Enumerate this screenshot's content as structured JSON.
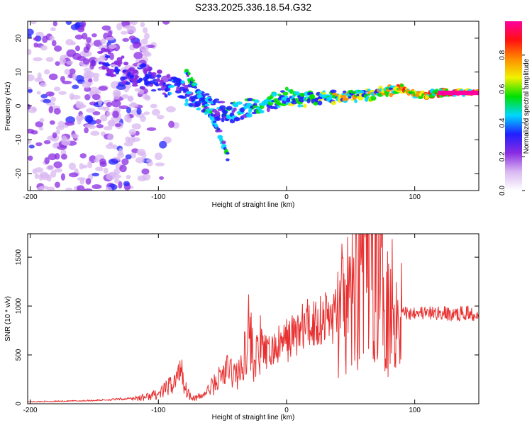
{
  "title": "S233.2025.336.18.54.G32",
  "colors": {
    "trace": "#e83030",
    "frame": "#000000"
  },
  "colormap": [
    "#ffffff",
    "#d9b8f2",
    "#8a2be2",
    "#2020ff",
    "#00d8ff",
    "#00e000",
    "#f2f200",
    "#ff8c00",
    "#ff1010",
    "#ff00a0"
  ],
  "chart_data": [
    {
      "type": "heatmap",
      "title": "S233.2025.336.18.54.G32",
      "xlabel": "Height of straight line (km)",
      "ylabel": "Frequency (Hz)",
      "xlim": [
        -202,
        150
      ],
      "ylim": [
        -25,
        25
      ],
      "x_ticks": [
        -200,
        -100,
        0,
        100
      ],
      "y_ticks": [
        -20,
        -10,
        0,
        10,
        20
      ],
      "colorbar": {
        "label": "Normalized spectral amplitude",
        "range": [
          0.0,
          1.0
        ],
        "ticks": [
          "0.0",
          "0.2",
          "0.4",
          "0.6",
          "0.8"
        ]
      },
      "ridge": {
        "x": [
          -145,
          -130,
          -115,
          -100,
          -85,
          -75,
          -65,
          -55,
          -45,
          -35,
          -25,
          -15,
          -5,
          0,
          10,
          20,
          30,
          40,
          50,
          60,
          70,
          80,
          90,
          100,
          110,
          120,
          150
        ],
        "freq": [
          14,
          11,
          9,
          7,
          5,
          3,
          1,
          -1,
          -2,
          -1,
          0,
          1,
          2,
          3,
          1.5,
          2,
          2.5,
          2.5,
          3,
          3,
          3.5,
          4.5,
          5,
          3.5,
          3.5,
          4,
          4
        ]
      },
      "branch": {
        "x": [
          -78,
          -72,
          -66,
          -60,
          -55,
          -50,
          -46
        ],
        "freq": [
          10,
          6,
          2,
          -2,
          -6,
          -10,
          -15
        ]
      }
    },
    {
      "type": "line",
      "title": "",
      "xlabel": "Height of straight line (km)",
      "ylabel": "SNR (10 * v/v)",
      "xlim": [
        -202,
        150
      ],
      "ylim": [
        0,
        1740
      ],
      "x_ticks": [
        -200,
        -100,
        0,
        100
      ],
      "y_ticks": [
        0,
        500,
        1000,
        1500
      ],
      "series": [
        {
          "name": "SNR",
          "x": [
            -202,
            -180,
            -160,
            -140,
            -120,
            -110,
            -100,
            -95,
            -90,
            -85,
            -82,
            -80,
            -75,
            -70,
            -65,
            -60,
            -55,
            -50,
            -45,
            -40,
            -35,
            -30,
            -25,
            -20,
            -15,
            -10,
            -5,
            0,
            5,
            10,
            15,
            20,
            25,
            30,
            35,
            40,
            45,
            50,
            55,
            60,
            62,
            65,
            67,
            70,
            72,
            75,
            78,
            80,
            85,
            90,
            95,
            100,
            110,
            120,
            130,
            140,
            150
          ],
          "y": [
            20,
            25,
            30,
            40,
            55,
            70,
            100,
            140,
            200,
            260,
            450,
            180,
            80,
            60,
            90,
            150,
            220,
            300,
            350,
            300,
            330,
            800,
            420,
            600,
            500,
            560,
            600,
            650,
            700,
            750,
            800,
            820,
            860,
            880,
            900,
            920,
            950,
            1000,
            1250,
            1550,
            1500,
            1700,
            1600,
            1500,
            1300,
            1400,
            1100,
            1050,
            1000,
            950,
            920,
            950,
            920,
            930,
            910,
            930,
            920
          ]
        }
      ]
    }
  ]
}
